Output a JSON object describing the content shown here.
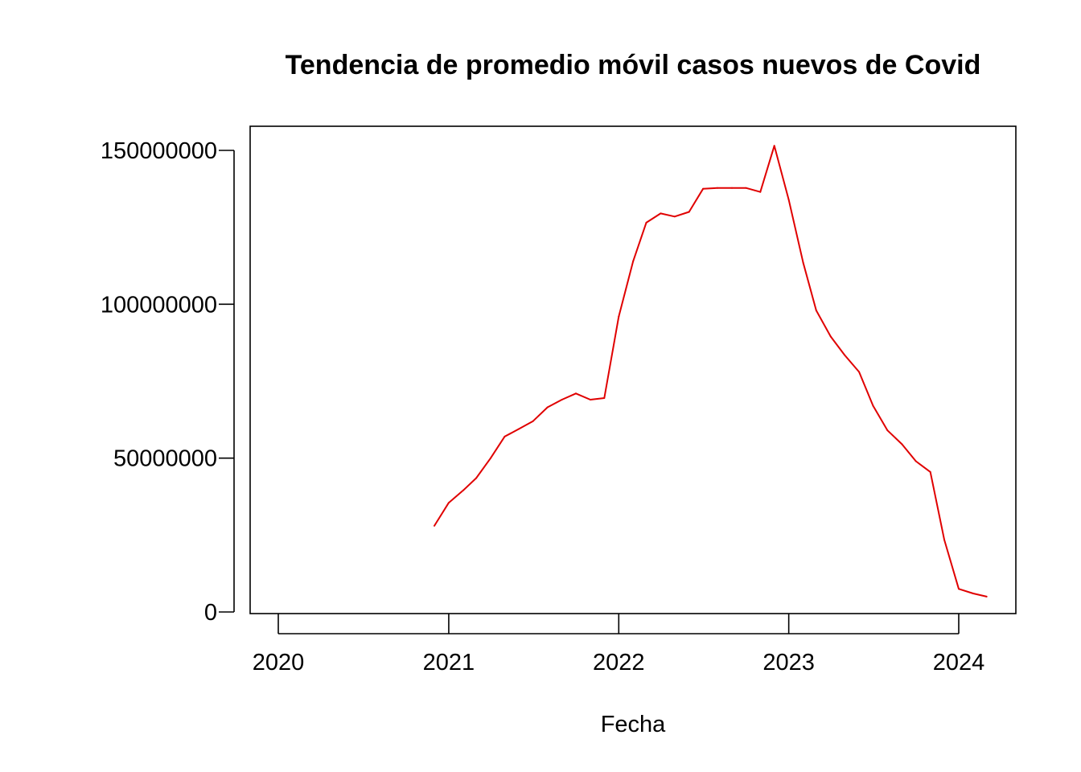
{
  "chart_data": {
    "type": "line",
    "title": "Tendencia de promedio móvil casos nuevos de Covid",
    "xlabel": "Fecha",
    "ylabel": "",
    "x_tick_labels": [
      "2020",
      "2021",
      "2022",
      "2023",
      "2024"
    ],
    "y_tick_labels": [
      "0",
      "50000000",
      "100000000",
      "150000000"
    ],
    "ylim": [
      0,
      150000000
    ],
    "grid": false,
    "legend": "none",
    "series": [
      {
        "color": "#e00000",
        "x": [
          "2020-12-01",
          "2021-01-01",
          "2021-02-01",
          "2021-03-01",
          "2021-04-01",
          "2021-05-01",
          "2021-06-01",
          "2021-07-01",
          "2021-08-01",
          "2021-09-01",
          "2021-10-01",
          "2021-11-01",
          "2021-12-01",
          "2022-01-01",
          "2022-02-01",
          "2022-03-01",
          "2022-04-01",
          "2022-05-01",
          "2022-06-01",
          "2022-07-01",
          "2022-08-01",
          "2022-09-01",
          "2022-10-01",
          "2022-11-01",
          "2022-12-01",
          "2023-01-01",
          "2023-02-01",
          "2023-03-01",
          "2023-04-01",
          "2023-05-01",
          "2023-06-01",
          "2023-07-01",
          "2023-08-01",
          "2023-09-01",
          "2023-10-01",
          "2023-11-01",
          "2023-12-01",
          "2024-01-01",
          "2024-02-01",
          "2024-03-01"
        ],
        "values": [
          28000000,
          35500000,
          39500000,
          43500000,
          50000000,
          57000000,
          59500000,
          62000000,
          66500000,
          69000000,
          71000000,
          69000000,
          69500000,
          96000000,
          114000000,
          126500000,
          129500000,
          128500000,
          130000000,
          137500000,
          137800000,
          137800000,
          137800000,
          136500000,
          151500000,
          134000000,
          113500000,
          98000000,
          89500000,
          83500000,
          78000000,
          67000000,
          59000000,
          54500000,
          49000000,
          45500000,
          23500000,
          7500000,
          6000000,
          5000000
        ]
      }
    ]
  }
}
